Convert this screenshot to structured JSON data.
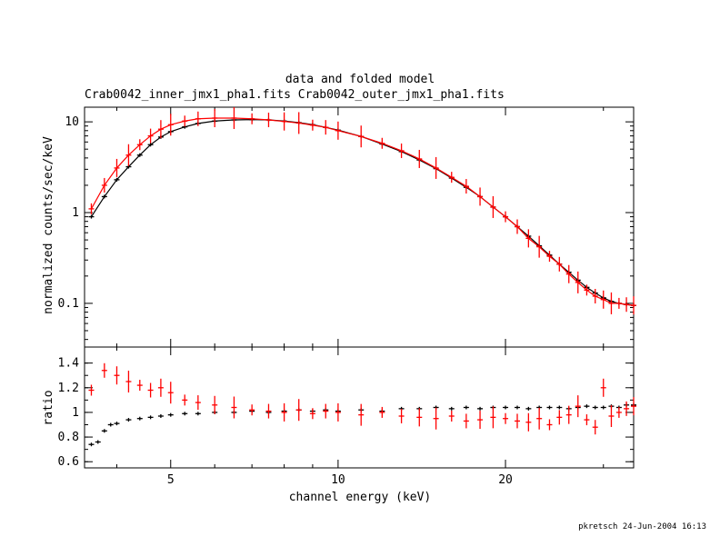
{
  "colors": {
    "inner": "#000000",
    "outer": "#ff0000",
    "axis": "#000000"
  },
  "chart_data": [
    {
      "type": "scatter",
      "title": "data and folded model",
      "subtitle": "Crab0042_inner_jmx1_pha1.fits Crab0042_outer_jmx1_pha1.fits",
      "ylabel": "normalized counts/sec/keV",
      "xlabel": "",
      "xscale": "log",
      "yscale": "log",
      "xlim": [
        3.5,
        34
      ],
      "ylim": [
        0.033,
        14.5
      ],
      "yticks": [
        0.1,
        1,
        10
      ],
      "ytick_labels": [
        "0.1",
        "1",
        "10"
      ],
      "grid": false,
      "series": [
        {
          "x": [
            3.6,
            3.8,
            4.0,
            4.2,
            4.4,
            4.6,
            4.8,
            5.0,
            5.3,
            5.6,
            6.0,
            6.5,
            7.0,
            7.5,
            8.0,
            8.5,
            9.0,
            9.5,
            10.0,
            11,
            12,
            13,
            14,
            15,
            16,
            17,
            18,
            19,
            20,
            21,
            22,
            23,
            24,
            25,
            26,
            27,
            28,
            29,
            30,
            31,
            32,
            33,
            34
          ],
          "y": [
            0.9,
            1.5,
            2.3,
            3.2,
            4.3,
            5.6,
            6.8,
            7.8,
            8.8,
            9.6,
            10.2,
            10.5,
            10.6,
            10.5,
            10.2,
            9.8,
            9.3,
            8.7,
            8.1,
            6.9,
            5.7,
            4.7,
            3.8,
            3.05,
            2.4,
            1.9,
            1.5,
            1.15,
            0.9,
            0.7,
            0.55,
            0.43,
            0.34,
            0.27,
            0.22,
            0.18,
            0.15,
            0.13,
            0.115,
            0.105,
            0.1,
            0.097,
            0.095
          ]
        },
        {
          "x": [
            3.6,
            3.8,
            4.0,
            4.2,
            4.4,
            4.6,
            4.8,
            5.0,
            5.3,
            5.6,
            6.0,
            6.5,
            7.0,
            7.5,
            8.0,
            8.5,
            9.0,
            9.5,
            10.0,
            11,
            12,
            13,
            14,
            15,
            16,
            17,
            18,
            19,
            20,
            21,
            22,
            23,
            24,
            25,
            26,
            27,
            28,
            29,
            30,
            31,
            32,
            33,
            34
          ],
          "y": [
            1.1,
            2.0,
            3.1,
            4.3,
            5.6,
            7.0,
            8.3,
            9.3,
            10.2,
            10.8,
            11.0,
            11.0,
            10.8,
            10.5,
            10.1,
            9.7,
            9.2,
            8.7,
            8.0,
            6.9,
            5.8,
            4.8,
            3.9,
            3.1,
            2.45,
            1.95,
            1.5,
            1.15,
            0.9,
            0.7,
            0.52,
            0.42,
            0.33,
            0.27,
            0.21,
            0.17,
            0.14,
            0.12,
            0.11,
            0.1,
            0.1,
            0.097,
            0.095
          ]
        }
      ]
    },
    {
      "type": "scatter",
      "title": "",
      "ylabel": "ratio",
      "xlabel": "channel energy (keV)",
      "xscale": "log",
      "yscale": "linear",
      "xlim": [
        3.5,
        34
      ],
      "ylim": [
        0.55,
        1.53
      ],
      "xticks": [
        5,
        10,
        20
      ],
      "xtick_labels": [
        "5",
        "10",
        "20"
      ],
      "yticks": [
        0.6,
        0.8,
        1.0,
        1.2,
        1.4
      ],
      "ytick_labels": [
        "0.6",
        "0.8",
        "1",
        "1.2",
        "1.4"
      ],
      "grid": false,
      "series": [
        {
          "x": [
            3.6,
            3.7,
            3.8,
            3.9,
            4.0,
            4.2,
            4.4,
            4.6,
            4.8,
            5.0,
            5.3,
            5.6,
            6.0,
            6.5,
            7.0,
            7.5,
            8.0,
            8.5,
            9.0,
            9.5,
            10.0,
            11,
            12,
            13,
            14,
            15,
            16,
            17,
            18,
            19,
            20,
            21,
            22,
            23,
            24,
            25,
            26,
            27,
            28,
            29,
            30,
            31,
            32,
            33,
            34
          ],
          "y": [
            0.74,
            0.76,
            0.85,
            0.9,
            0.91,
            0.94,
            0.95,
            0.96,
            0.97,
            0.98,
            0.99,
            0.99,
            1.0,
            1.0,
            1.01,
            1.0,
            1.01,
            1.02,
            1.01,
            1.02,
            1.01,
            1.02,
            1.01,
            1.03,
            1.03,
            1.04,
            1.03,
            1.04,
            1.03,
            1.04,
            1.04,
            1.04,
            1.03,
            1.04,
            1.04,
            1.04,
            1.03,
            1.04,
            1.05,
            1.04,
            1.04,
            1.05,
            1.04,
            1.06,
            1.06
          ]
        },
        {
          "x": [
            3.6,
            3.8,
            4.0,
            4.2,
            4.4,
            4.6,
            4.8,
            5.0,
            5.3,
            5.6,
            6.0,
            6.5,
            7.0,
            7.5,
            8.0,
            8.5,
            9.0,
            9.5,
            10.0,
            11,
            12,
            13,
            14,
            15,
            16,
            17,
            18,
            19,
            20,
            21,
            22,
            23,
            24,
            25,
            26,
            27,
            28,
            29,
            30,
            31,
            32,
            33,
            34
          ],
          "y": [
            1.18,
            1.34,
            1.3,
            1.25,
            1.22,
            1.18,
            1.2,
            1.16,
            1.1,
            1.08,
            1.06,
            1.04,
            1.02,
            1.01,
            1.0,
            1.02,
            0.99,
            1.01,
            1.0,
            0.98,
            1.0,
            0.97,
            0.96,
            0.95,
            0.97,
            0.93,
            0.94,
            0.96,
            0.95,
            0.93,
            0.92,
            0.95,
            0.9,
            0.96,
            0.98,
            1.05,
            0.94,
            0.88,
            1.2,
            0.97,
            1.0,
            1.03,
            1.05
          ]
        }
      ]
    }
  ],
  "footer": {
    "stamp": "pkretsch 24-Jun-2004 16:13"
  }
}
